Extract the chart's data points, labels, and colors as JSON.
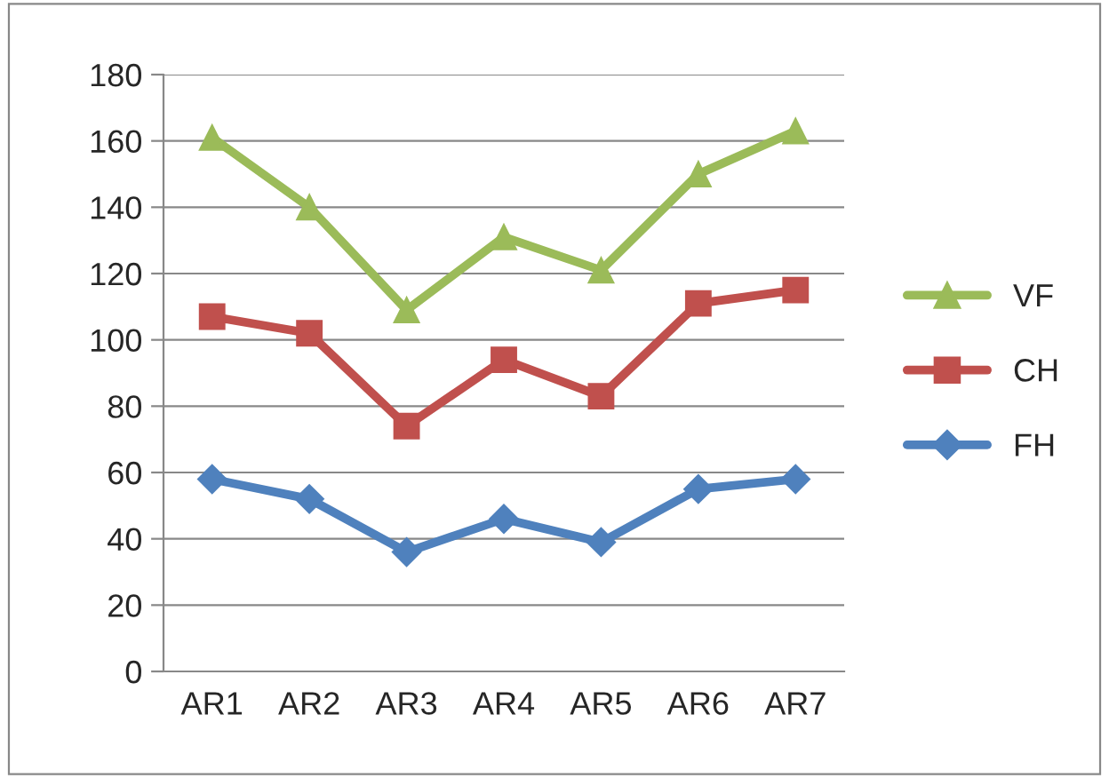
{
  "chart_data": {
    "type": "line",
    "categories": [
      "AR1",
      "AR2",
      "AR3",
      "AR4",
      "AR5",
      "AR6",
      "AR7"
    ],
    "series": [
      {
        "name": "VF",
        "color": "#9bbb59",
        "marker": "triangle",
        "values": [
          161,
          140,
          109,
          131,
          121,
          150,
          163
        ]
      },
      {
        "name": "CH",
        "color": "#c0504d",
        "marker": "square",
        "values": [
          107,
          102,
          74,
          94,
          83,
          111,
          115
        ]
      },
      {
        "name": "FH",
        "color": "#4f81bd",
        "marker": "diamond",
        "values": [
          58,
          52,
          36,
          46,
          39,
          55,
          58
        ]
      }
    ],
    "ylim": [
      0,
      180
    ],
    "yticks": [
      0,
      20,
      40,
      60,
      80,
      100,
      120,
      140,
      160,
      180
    ],
    "grid": "y",
    "legend": "right",
    "line_style": "solid"
  }
}
